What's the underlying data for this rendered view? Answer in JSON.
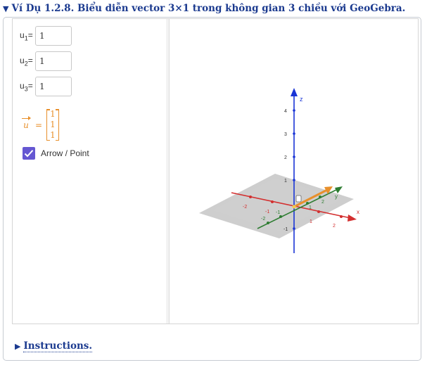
{
  "header": {
    "title": "Ví Dụ 1.2.8. Biểu diễn vector 3×1 trong không gian 3 chiều với GeoGebra."
  },
  "algebra": {
    "inputs": [
      {
        "name": "u",
        "sub": "1",
        "value": "1"
      },
      {
        "name": "u",
        "sub": "2",
        "value": "1"
      },
      {
        "name": "u",
        "sub": "3",
        "value": "1"
      }
    ],
    "vector": {
      "name": "u",
      "values": [
        "1",
        "1",
        "1"
      ]
    },
    "checkbox": {
      "label": "Arrow / Point",
      "checked": true
    }
  },
  "graphics": {
    "z_axis_label": "z",
    "z_ticks": [
      "1",
      "2",
      "3",
      "4"
    ],
    "x_axis_label": "x",
    "y_axis_label": "y",
    "x_tick_labels": [
      "-2",
      "-1",
      "1",
      "2"
    ],
    "y_tick_labels": [
      "-2",
      "-1",
      "1",
      "2"
    ],
    "z_neg_label": "-1",
    "axis_colors": {
      "x": "#d32f2f",
      "y": "#2e7d32",
      "z": "#1a35d6"
    },
    "vector_color": "#e8902c"
  },
  "footer": {
    "instructions_label": "Instructions."
  }
}
